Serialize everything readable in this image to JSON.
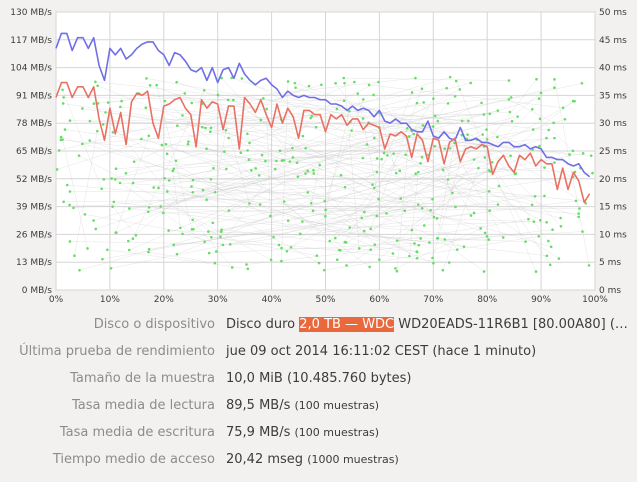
{
  "chart_data": {
    "type": "line",
    "x_ticks": [
      "0%",
      "10%",
      "20%",
      "30%",
      "40%",
      "50%",
      "60%",
      "70%",
      "80%",
      "90%",
      "100%"
    ],
    "y_left_ticks": [
      "0 MB/s",
      "13 MB/s",
      "26 MB/s",
      "39 MB/s",
      "52 MB/s",
      "65 MB/s",
      "78 MB/s",
      "91 MB/s",
      "104 MB/s",
      "117 MB/s",
      "130 MB/s"
    ],
    "y_right_ticks": [
      "0 ms",
      "5 ms",
      "10 ms",
      "15 ms",
      "20 ms",
      "25 ms",
      "30 ms",
      "35 ms",
      "40 ms",
      "45 ms",
      "50 ms"
    ],
    "xlim": [
      0,
      100
    ],
    "ylim_left": [
      0,
      130
    ],
    "ylim_right": [
      0,
      50
    ],
    "grid": true,
    "series": [
      {
        "color": "#6f6fe6",
        "x": [
          0,
          1,
          2,
          3,
          4,
          5,
          6,
          7,
          8,
          9,
          10,
          11,
          12,
          13,
          14,
          15,
          16,
          17,
          18,
          19,
          20,
          21,
          22,
          23,
          24,
          25,
          26,
          27,
          28,
          29,
          30,
          31,
          32,
          33,
          34,
          35,
          36,
          37,
          38,
          39,
          40,
          41,
          42,
          43,
          44,
          45,
          46,
          47,
          48,
          49,
          50,
          51,
          52,
          53,
          54,
          55,
          56,
          57,
          58,
          59,
          60,
          61,
          62,
          63,
          64,
          65,
          66,
          67,
          68,
          69,
          70,
          71,
          72,
          73,
          74,
          75,
          76,
          77,
          78,
          79,
          80,
          81,
          82,
          83,
          84,
          85,
          86,
          87,
          88,
          89,
          90,
          91,
          92,
          93,
          94,
          95,
          96,
          97,
          98,
          99
        ],
        "y": [
          113,
          120,
          120,
          112,
          118,
          118,
          113,
          118,
          105,
          98,
          113,
          110,
          113,
          108,
          110,
          113,
          115,
          116,
          116,
          112,
          110,
          105,
          111,
          110,
          107,
          103,
          102,
          104,
          98,
          104,
          97,
          103,
          104,
          99,
          106,
          101,
          98,
          96,
          98,
          99,
          96,
          94,
          90,
          93,
          91,
          90,
          91,
          90,
          90,
          89,
          89,
          87,
          87,
          86,
          84,
          86,
          84,
          85,
          84,
          81,
          84,
          79,
          78,
          80,
          78,
          78,
          75,
          74,
          74,
          79,
          72,
          71,
          74,
          71,
          70,
          76,
          70,
          70,
          71,
          69,
          69,
          68,
          67,
          69,
          69,
          67,
          67,
          68,
          66,
          67,
          66,
          62,
          62,
          61,
          61,
          59,
          58,
          59,
          55,
          53
        ]
      },
      {
        "color": "#e97163",
        "x": [
          0,
          1,
          2,
          3,
          4,
          5,
          6,
          7,
          8,
          9,
          10,
          11,
          12,
          13,
          14,
          15,
          16,
          17,
          18,
          19,
          20,
          21,
          22,
          23,
          24,
          25,
          26,
          27,
          28,
          29,
          30,
          31,
          32,
          33,
          34,
          35,
          36,
          37,
          38,
          39,
          40,
          41,
          42,
          43,
          44,
          45,
          46,
          47,
          48,
          49,
          50,
          51,
          52,
          53,
          54,
          55,
          56,
          57,
          58,
          59,
          60,
          61,
          62,
          63,
          64,
          65,
          66,
          67,
          68,
          69,
          70,
          71,
          72,
          73,
          74,
          75,
          76,
          77,
          78,
          79,
          80,
          81,
          82,
          83,
          84,
          85,
          86,
          87,
          88,
          89,
          90,
          91,
          92,
          93,
          94,
          95,
          96,
          97,
          98,
          99
        ],
        "y": [
          90,
          97,
          97,
          90,
          95,
          95,
          90,
          95,
          80,
          70,
          85,
          73,
          83,
          68,
          88,
          92,
          91,
          93,
          78,
          71,
          86,
          87,
          89,
          90,
          85,
          82,
          67,
          89,
          85,
          88,
          87,
          75,
          86,
          86,
          66,
          90,
          87,
          83,
          89,
          82,
          76,
          87,
          78,
          85,
          81,
          71,
          84,
          84,
          82,
          82,
          74,
          82,
          80,
          82,
          77,
          80,
          80,
          75,
          78,
          77,
          76,
          66,
          73,
          72,
          74,
          72,
          62,
          73,
          70,
          60,
          71,
          70,
          59,
          69,
          71,
          60,
          66,
          67,
          66,
          68,
          67,
          54,
          60,
          63,
          58,
          55,
          63,
          61,
          64,
          58,
          61,
          59,
          59,
          47,
          57,
          47,
          55,
          51,
          41,
          45
        ]
      }
    ]
  },
  "details": [
    {
      "label": "Disco o dispositivo",
      "value": "Disco duro ",
      "highlight": "2,0 TB — WDC",
      "value2": " WD20EADS-11R6B1 [80.00A80] (…",
      "note": ""
    },
    {
      "label": "Última prueba de rendimiento",
      "value": "jue 09 oct 2014 16:11:02 CEST (hace 1 minuto)",
      "note": ""
    },
    {
      "label": "Tamaño de la muestra",
      "value": "10,0 MiB (10.485.760 bytes)",
      "note": ""
    },
    {
      "label": "Tasa media de lectura",
      "value": "89,5 MB/s",
      "note": "(100 muestras)"
    },
    {
      "label": "Tasa media de escritura",
      "value": "75,9 MB/s",
      "note": "(100 muestras)"
    },
    {
      "label": "Tiempo medio de acceso",
      "value": "20,42 mseg",
      "note": "(1000 muestras)"
    }
  ]
}
